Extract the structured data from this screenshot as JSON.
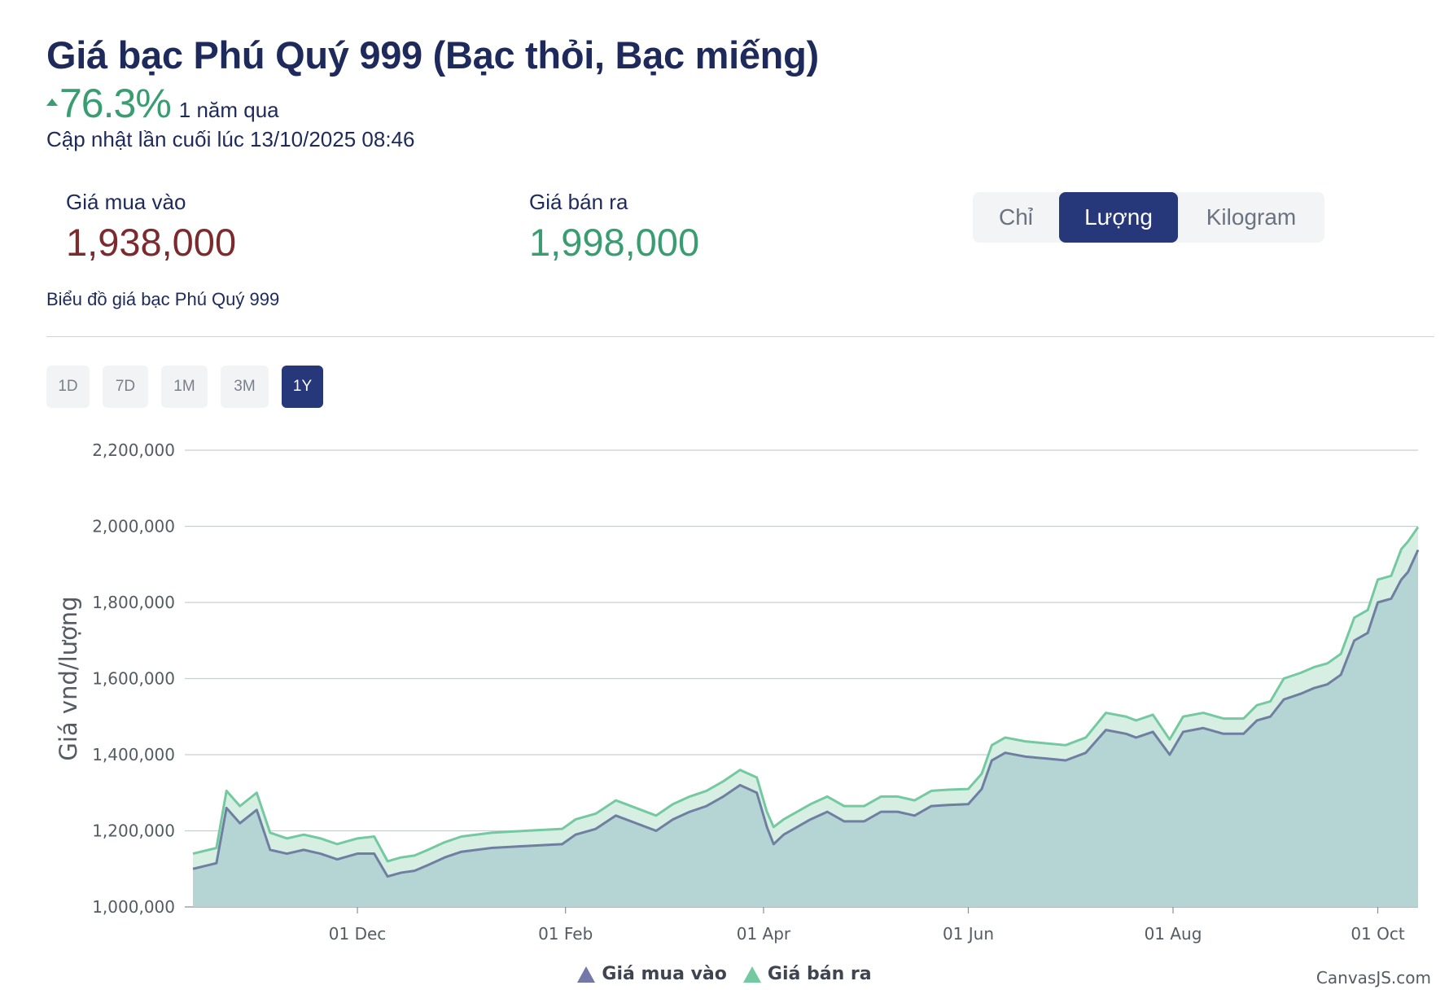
{
  "header": {
    "title": "Giá bạc Phú Quý 999 (Bạc thỏi, Bạc miếng)",
    "change_value": "76.3%",
    "change_period": "1 năm qua",
    "updated": "Cập nhật lần cuối lúc 13/10/2025 08:46"
  },
  "prices": {
    "buy_label": "Giá mua vào",
    "buy_value": "1,938,000",
    "sell_label": "Giá bán ra",
    "sell_value": "1,998,000"
  },
  "units": {
    "items": [
      "Chỉ",
      "Lượng",
      "Kilogram"
    ],
    "active": "Lượng"
  },
  "chart_caption": "Biểu đồ giá bạc Phú Quý 999",
  "ranges": {
    "items": [
      "1D",
      "7D",
      "1M",
      "3M",
      "1Y"
    ],
    "active": "1Y"
  },
  "credit": "CanvasJS.com",
  "colors": {
    "navy": "#26377a",
    "up_green": "#3a9d71",
    "buy_red": "#7d2a2e",
    "buy_line": "#6f7fa1",
    "sell_line": "#74c9a1",
    "fill": "#b5d4d4"
  },
  "chart_data": {
    "type": "area",
    "ylabel": "Giá vnd/lượng",
    "xlabel": "",
    "ylim": [
      1000000,
      2200000
    ],
    "yticks": [
      1000000,
      1200000,
      1400000,
      1600000,
      1800000,
      2000000,
      2200000
    ],
    "ytick_labels": [
      "1,000,000",
      "1,200,000",
      "1,400,000",
      "1,600,000",
      "1,800,000",
      "2,000,000",
      "2,200,000"
    ],
    "xlim": [
      "2024-10-13",
      "2025-10-13"
    ],
    "xticks": [
      "2024-12-01",
      "2025-02-01",
      "2025-04-01",
      "2025-06-01",
      "2025-08-01",
      "2025-10-01"
    ],
    "xtick_labels": [
      "01 Dec",
      "01 Feb",
      "01 Apr",
      "01 Jun",
      "01 Aug",
      "01 Oct"
    ],
    "grid": true,
    "legend_position": "bottom-center",
    "x": [
      "2024-10-13",
      "2024-10-20",
      "2024-10-23",
      "2024-10-27",
      "2024-11-01",
      "2024-11-05",
      "2024-11-10",
      "2024-11-15",
      "2024-11-20",
      "2024-11-25",
      "2024-12-01",
      "2024-12-06",
      "2024-12-10",
      "2024-12-14",
      "2024-12-18",
      "2024-12-22",
      "2024-12-27",
      "2025-01-01",
      "2025-01-10",
      "2025-01-20",
      "2025-01-31",
      "2025-02-04",
      "2025-02-10",
      "2025-02-16",
      "2025-02-22",
      "2025-02-28",
      "2025-03-05",
      "2025-03-10",
      "2025-03-15",
      "2025-03-20",
      "2025-03-25",
      "2025-03-30",
      "2025-04-02",
      "2025-04-04",
      "2025-04-07",
      "2025-04-10",
      "2025-04-15",
      "2025-04-20",
      "2025-04-25",
      "2025-05-01",
      "2025-05-06",
      "2025-05-11",
      "2025-05-16",
      "2025-05-21",
      "2025-05-26",
      "2025-06-01",
      "2025-06-05",
      "2025-06-08",
      "2025-06-12",
      "2025-06-18",
      "2025-06-24",
      "2025-06-30",
      "2025-07-06",
      "2025-07-12",
      "2025-07-18",
      "2025-07-21",
      "2025-07-26",
      "2025-07-31",
      "2025-08-04",
      "2025-08-10",
      "2025-08-16",
      "2025-08-22",
      "2025-08-26",
      "2025-08-30",
      "2025-09-03",
      "2025-09-08",
      "2025-09-12",
      "2025-09-16",
      "2025-09-20",
      "2025-09-24",
      "2025-09-28",
      "2025-10-01",
      "2025-10-05",
      "2025-10-08",
      "2025-10-10",
      "2025-10-13"
    ],
    "series": [
      {
        "name": "Giá mua vào",
        "values": [
          1100000,
          1115000,
          1260000,
          1220000,
          1255000,
          1150000,
          1140000,
          1150000,
          1140000,
          1125000,
          1140000,
          1140000,
          1080000,
          1090000,
          1095000,
          1110000,
          1130000,
          1145000,
          1155000,
          1160000,
          1165000,
          1190000,
          1205000,
          1240000,
          1220000,
          1200000,
          1230000,
          1250000,
          1265000,
          1290000,
          1320000,
          1300000,
          1210000,
          1165000,
          1190000,
          1205000,
          1230000,
          1250000,
          1225000,
          1225000,
          1250000,
          1250000,
          1240000,
          1265000,
          1268000,
          1270000,
          1310000,
          1385000,
          1405000,
          1395000,
          1390000,
          1385000,
          1405000,
          1465000,
          1455000,
          1445000,
          1460000,
          1400000,
          1460000,
          1470000,
          1455000,
          1455000,
          1490000,
          1500000,
          1545000,
          1560000,
          1575000,
          1585000,
          1610000,
          1700000,
          1720000,
          1800000,
          1810000,
          1860000,
          1880000,
          1938000
        ]
      },
      {
        "name": "Giá bán ra",
        "values": [
          1140000,
          1155000,
          1305000,
          1265000,
          1300000,
          1195000,
          1180000,
          1190000,
          1180000,
          1165000,
          1180000,
          1185000,
          1120000,
          1130000,
          1135000,
          1150000,
          1170000,
          1185000,
          1195000,
          1200000,
          1205000,
          1230000,
          1245000,
          1280000,
          1260000,
          1240000,
          1270000,
          1290000,
          1305000,
          1330000,
          1360000,
          1340000,
          1250000,
          1210000,
          1230000,
          1245000,
          1270000,
          1290000,
          1265000,
          1265000,
          1290000,
          1290000,
          1280000,
          1305000,
          1308000,
          1310000,
          1350000,
          1425000,
          1445000,
          1435000,
          1430000,
          1425000,
          1445000,
          1510000,
          1500000,
          1490000,
          1505000,
          1440000,
          1500000,
          1510000,
          1495000,
          1495000,
          1530000,
          1540000,
          1600000,
          1615000,
          1630000,
          1640000,
          1665000,
          1760000,
          1780000,
          1860000,
          1870000,
          1940000,
          1960000,
          1998000
        ]
      }
    ]
  }
}
